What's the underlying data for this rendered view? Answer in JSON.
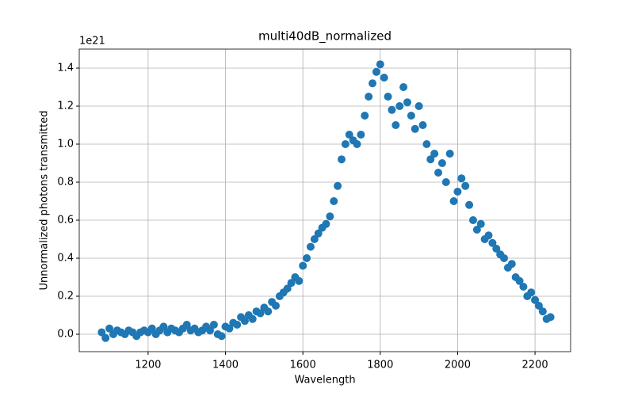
{
  "chart_data": {
    "type": "scatter",
    "title": "multi40dB_normalized",
    "x_label": "Wavelength",
    "y_label": "Unnormalized photons transmitted",
    "y_offset_text": "1e21",
    "series": [
      {
        "name": "multi40dB",
        "color": "#1f77b4",
        "x": [
          1080,
          1090,
          1100,
          1110,
          1120,
          1130,
          1140,
          1150,
          1160,
          1170,
          1180,
          1190,
          1200,
          1210,
          1220,
          1230,
          1240,
          1250,
          1260,
          1270,
          1280,
          1290,
          1300,
          1310,
          1320,
          1330,
          1340,
          1350,
          1360,
          1370,
          1380,
          1390,
          1400,
          1410,
          1420,
          1430,
          1440,
          1450,
          1460,
          1470,
          1480,
          1490,
          1500,
          1510,
          1520,
          1530,
          1540,
          1550,
          1560,
          1570,
          1580,
          1590,
          1600,
          1610,
          1620,
          1630,
          1640,
          1650,
          1660,
          1670,
          1680,
          1690,
          1700,
          1710,
          1720,
          1730,
          1740,
          1750,
          1760,
          1770,
          1780,
          1790,
          1800,
          1810,
          1820,
          1830,
          1840,
          1850,
          1860,
          1870,
          1880,
          1890,
          1900,
          1910,
          1920,
          1930,
          1940,
          1950,
          1960,
          1970,
          1980,
          1990,
          2000,
          2010,
          2020,
          2030,
          2040,
          2050,
          2060,
          2070,
          2080,
          2090,
          2100,
          2110,
          2120,
          2130,
          2140,
          2150,
          2160,
          2170,
          2180,
          2190,
          2200,
          2210,
          2220,
          2230,
          2240
        ],
        "values": [
          0.01,
          -0.02,
          0.03,
          0.0,
          0.02,
          0.01,
          0.0,
          0.02,
          0.01,
          -0.01,
          0.01,
          0.02,
          0.01,
          0.03,
          0.0,
          0.02,
          0.04,
          0.01,
          0.03,
          0.02,
          0.01,
          0.03,
          0.05,
          0.02,
          0.03,
          0.01,
          0.02,
          0.04,
          0.02,
          0.05,
          0.0,
          -0.01,
          0.04,
          0.03,
          0.06,
          0.05,
          0.09,
          0.07,
          0.1,
          0.08,
          0.12,
          0.11,
          0.14,
          0.12,
          0.17,
          0.15,
          0.2,
          0.22,
          0.24,
          0.27,
          0.3,
          0.28,
          0.36,
          0.4,
          0.46,
          0.5,
          0.53,
          0.56,
          0.58,
          0.62,
          0.7,
          0.78,
          0.92,
          1.0,
          1.05,
          1.02,
          1.0,
          1.05,
          1.15,
          1.25,
          1.32,
          1.38,
          1.42,
          1.35,
          1.25,
          1.18,
          1.1,
          1.2,
          1.3,
          1.22,
          1.15,
          1.08,
          1.2,
          1.1,
          1.0,
          0.92,
          0.95,
          0.85,
          0.9,
          0.8,
          0.95,
          0.7,
          0.75,
          0.82,
          0.78,
          0.68,
          0.6,
          0.55,
          0.58,
          0.5,
          0.52,
          0.48,
          0.45,
          0.42,
          0.4,
          0.35,
          0.37,
          0.3,
          0.28,
          0.25,
          0.2,
          0.22,
          0.18,
          0.15,
          0.12,
          0.08,
          0.09
        ]
      }
    ],
    "xlim": [
      1022,
      2292
    ],
    "xticks": [
      1200,
      1400,
      1600,
      1800,
      2000,
      2200
    ],
    "ylim": [
      -0.0917,
      1.5
    ],
    "yticks": [
      {
        "value": 0,
        "label": "0.0"
      },
      0.2,
      0.4,
      0.6,
      0.8,
      {
        "value": 1,
        "label": "1.0"
      },
      1.2,
      1.4
    ],
    "grid": true
  }
}
